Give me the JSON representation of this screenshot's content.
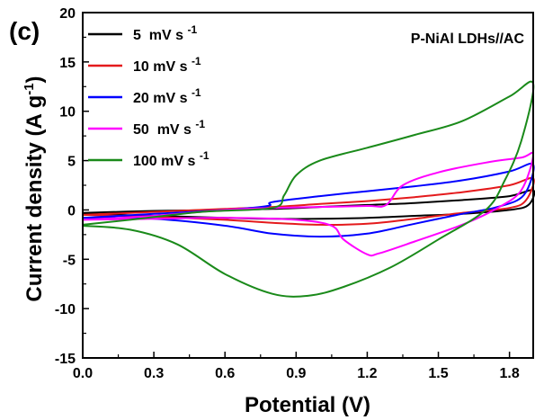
{
  "chart_data": {
    "type": "line",
    "panel_label": "(c)",
    "annotation": "P-NiAl LDHs//AC",
    "xlabel": "Potential (V)",
    "ylabel_main": "Current density (A g",
    "ylabel_sup": "-1",
    "ylabel_close": ")",
    "xlim": [
      0,
      1.9
    ],
    "ylim": [
      -15,
      20
    ],
    "xticks": [
      0.0,
      0.3,
      0.6,
      0.9,
      1.2,
      1.5,
      1.8
    ],
    "xtick_labels": [
      "0.0",
      "0.3",
      "0.6",
      "0.9",
      "1.2",
      "1.5",
      "1.8"
    ],
    "yticks": [
      -15,
      -10,
      -5,
      0,
      5,
      10,
      15,
      20
    ],
    "ytick_labels": [
      "-15",
      "-10",
      "-5",
      "0",
      "5",
      "10",
      "15",
      "20"
    ],
    "legend_placement": "top-left",
    "legend_unit": "s",
    "legend_unit_sup": "-1",
    "series": [
      {
        "name": "5  mV s",
        "color": "#000000",
        "forward": [
          [
            0,
            -0.3
          ],
          [
            0.3,
            -0.1
          ],
          [
            0.6,
            0.0
          ],
          [
            0.8,
            0.1
          ],
          [
            1.0,
            0.3
          ],
          [
            1.2,
            0.5
          ],
          [
            1.4,
            0.7
          ],
          [
            1.6,
            1.0
          ],
          [
            1.8,
            1.4
          ],
          [
            1.9,
            2.0
          ]
        ],
        "reverse": [
          [
            1.9,
            2.0
          ],
          [
            1.88,
            0.5
          ],
          [
            1.8,
            0.0
          ],
          [
            1.6,
            -0.4
          ],
          [
            1.4,
            -0.6
          ],
          [
            1.2,
            -0.8
          ],
          [
            1.0,
            -0.9
          ],
          [
            0.8,
            -0.9
          ],
          [
            0.6,
            -0.8
          ],
          [
            0.3,
            -0.6
          ],
          [
            0.0,
            -0.4
          ]
        ]
      },
      {
        "name": "10 mV s",
        "color": "#e41a1c",
        "forward": [
          [
            0,
            -0.5
          ],
          [
            0.3,
            -0.2
          ],
          [
            0.6,
            0.1
          ],
          [
            0.8,
            0.3
          ],
          [
            1.0,
            0.6
          ],
          [
            1.2,
            0.9
          ],
          [
            1.4,
            1.3
          ],
          [
            1.6,
            1.8
          ],
          [
            1.8,
            2.5
          ],
          [
            1.9,
            3.2
          ]
        ],
        "reverse": [
          [
            1.9,
            3.2
          ],
          [
            1.87,
            1.0
          ],
          [
            1.8,
            0.2
          ],
          [
            1.6,
            -0.3
          ],
          [
            1.4,
            -0.9
          ],
          [
            1.2,
            -1.4
          ],
          [
            1.0,
            -1.5
          ],
          [
            0.8,
            -1.3
          ],
          [
            0.6,
            -1.0
          ],
          [
            0.3,
            -0.7
          ],
          [
            0.0,
            -0.5
          ]
        ]
      },
      {
        "name": "20 mV s",
        "color": "#0000ff",
        "forward": [
          [
            0,
            -0.8
          ],
          [
            0.3,
            -0.4
          ],
          [
            0.6,
            0.0
          ],
          [
            0.78,
            0.4
          ],
          [
            0.8,
            0.8
          ],
          [
            1.0,
            1.4
          ],
          [
            1.2,
            1.9
          ],
          [
            1.4,
            2.4
          ],
          [
            1.6,
            3.0
          ],
          [
            1.8,
            3.9
          ],
          [
            1.9,
            4.6
          ]
        ],
        "reverse": [
          [
            1.9,
            4.6
          ],
          [
            1.86,
            1.5
          ],
          [
            1.75,
            0.3
          ],
          [
            1.6,
            -0.4
          ],
          [
            1.4,
            -1.4
          ],
          [
            1.2,
            -2.4
          ],
          [
            1.0,
            -2.7
          ],
          [
            0.8,
            -2.4
          ],
          [
            0.6,
            -1.6
          ],
          [
            0.3,
            -0.9
          ],
          [
            0.0,
            -0.8
          ]
        ]
      },
      {
        "name": "50  mV s",
        "color": "#ff00ff",
        "forward": [
          [
            0,
            -1.0
          ],
          [
            0.3,
            -0.6
          ],
          [
            0.6,
            0.0
          ],
          [
            0.8,
            0.2
          ],
          [
            1.0,
            0.3
          ],
          [
            1.2,
            0.4
          ],
          [
            1.28,
            0.5
          ],
          [
            1.35,
            2.5
          ],
          [
            1.5,
            3.8
          ],
          [
            1.7,
            4.8
          ],
          [
            1.85,
            5.3
          ],
          [
            1.9,
            5.6
          ]
        ],
        "reverse": [
          [
            1.9,
            5.6
          ],
          [
            1.85,
            2.0
          ],
          [
            1.75,
            0.2
          ],
          [
            1.6,
            -1.5
          ],
          [
            1.4,
            -3.2
          ],
          [
            1.25,
            -4.4
          ],
          [
            1.2,
            -4.5
          ],
          [
            1.1,
            -3.0
          ],
          [
            1.05,
            -1.6
          ],
          [
            0.9,
            -1.0
          ],
          [
            0.6,
            -0.8
          ],
          [
            0.3,
            -0.9
          ],
          [
            0.0,
            -1.0
          ]
        ]
      },
      {
        "name": "100 mV s",
        "color": "#1a8a1a",
        "forward": [
          [
            0,
            -1.5
          ],
          [
            0.2,
            -1.0
          ],
          [
            0.5,
            -0.2
          ],
          [
            0.8,
            0.2
          ],
          [
            0.85,
            1.5
          ],
          [
            0.9,
            3.5
          ],
          [
            1.0,
            5.0
          ],
          [
            1.2,
            6.3
          ],
          [
            1.4,
            7.6
          ],
          [
            1.6,
            9.0
          ],
          [
            1.8,
            11.5
          ],
          [
            1.9,
            12.8
          ]
        ],
        "reverse": [
          [
            1.9,
            12.8
          ],
          [
            1.85,
            7.0
          ],
          [
            1.78,
            3.0
          ],
          [
            1.7,
            0.0
          ],
          [
            1.5,
            -3.0
          ],
          [
            1.3,
            -5.8
          ],
          [
            1.1,
            -7.8
          ],
          [
            0.95,
            -8.7
          ],
          [
            0.8,
            -8.5
          ],
          [
            0.6,
            -6.5
          ],
          [
            0.4,
            -3.5
          ],
          [
            0.2,
            -2.0
          ],
          [
            0.0,
            -1.6
          ]
        ]
      }
    ]
  }
}
